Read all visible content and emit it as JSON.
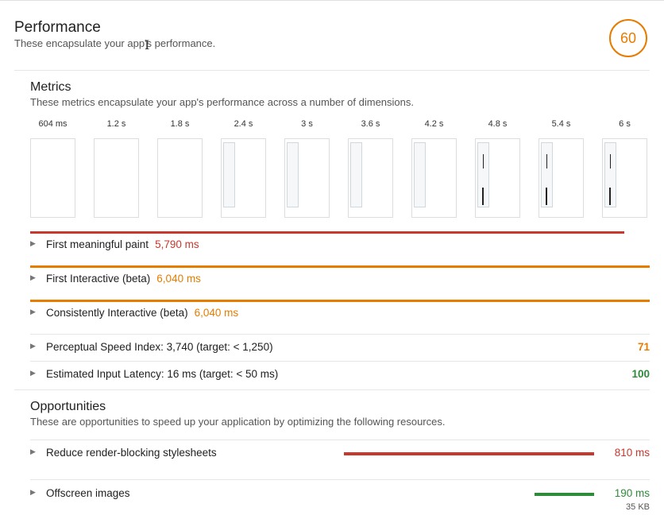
{
  "header": {
    "title": "Performance",
    "description": "These encapsulate your app's performance.",
    "score": "60",
    "score_color": "#e67c00"
  },
  "metrics": {
    "title": "Metrics",
    "description": "These metrics encapsulate your app's performance across a number of dimensions.",
    "filmstrip": [
      {
        "time": "604 ms",
        "content": "blank"
      },
      {
        "time": "1.2 s",
        "content": "blank"
      },
      {
        "time": "1.8 s",
        "content": "blank"
      },
      {
        "time": "2.4 s",
        "content": "partial"
      },
      {
        "time": "3 s",
        "content": "partial"
      },
      {
        "time": "3.6 s",
        "content": "partial"
      },
      {
        "time": "4.2 s",
        "content": "partial"
      },
      {
        "time": "4.8 s",
        "content": "loaded"
      },
      {
        "time": "5.4 s",
        "content": "loaded"
      },
      {
        "time": "6 s",
        "content": "loaded"
      }
    ],
    "items": [
      {
        "label": "First meaningful paint",
        "value": "5,790 ms",
        "color": "#c7382f"
      },
      {
        "label": "First Interactive (beta)",
        "value": "6,040 ms",
        "color": "#e67c00"
      },
      {
        "label": "Consistently Interactive (beta)",
        "value": "6,040 ms",
        "color": "#e67c00"
      },
      {
        "label": "Perceptual Speed Index: 3,740 (target: < 1,250)",
        "score": "71",
        "color": "#e67c00"
      },
      {
        "label": "Estimated Input Latency: 16 ms (target: < 50 ms)",
        "score": "100",
        "color": "#2e8b3a"
      }
    ]
  },
  "opportunities": {
    "title": "Opportunities",
    "description": "These are opportunities to speed up your application by optimizing the following resources.",
    "items": [
      {
        "label": "Reduce render-blocking stylesheets",
        "value": "810 ms",
        "color": "#c7382f"
      },
      {
        "label": "Offscreen images",
        "value": "190 ms",
        "sub": "35 KB",
        "color": "#2e8b3a"
      }
    ]
  }
}
